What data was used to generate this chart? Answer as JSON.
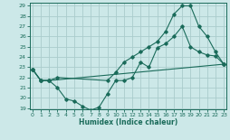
{
  "xlabel": "Humidex (Indice chaleur)",
  "ylabel": "",
  "bg_color": "#cce8e8",
  "grid_color": "#aacccc",
  "line_color": "#1a6b5a",
  "xmin": 0,
  "xmax": 23,
  "ymin": 19,
  "ymax": 29,
  "line1_x": [
    0,
    1,
    2,
    3,
    4,
    5,
    6,
    7,
    8,
    9,
    10,
    11,
    12,
    13,
    14,
    15,
    16,
    17,
    18,
    19,
    20,
    21,
    22,
    23
  ],
  "line1_y": [
    22.8,
    21.7,
    21.7,
    21.0,
    19.9,
    19.7,
    19.2,
    18.8,
    19.1,
    20.4,
    21.7,
    21.7,
    22.0,
    23.5,
    23.0,
    24.9,
    25.3,
    26.0,
    27.0,
    25.0,
    24.5,
    24.2,
    24.1,
    23.3
  ],
  "line2_x": [
    0,
    1,
    2,
    3,
    9,
    10,
    11,
    12,
    13,
    14,
    15,
    16,
    17,
    18,
    19,
    20,
    21,
    22,
    23
  ],
  "line2_y": [
    22.8,
    21.7,
    21.7,
    22.0,
    21.7,
    22.5,
    23.5,
    24.0,
    24.5,
    25.0,
    25.5,
    26.5,
    28.2,
    29.0,
    29.0,
    27.0,
    26.0,
    24.5,
    23.3
  ],
  "line3_x": [
    0,
    1,
    2,
    23
  ],
  "line3_y": [
    22.8,
    21.7,
    21.7,
    23.3
  ]
}
